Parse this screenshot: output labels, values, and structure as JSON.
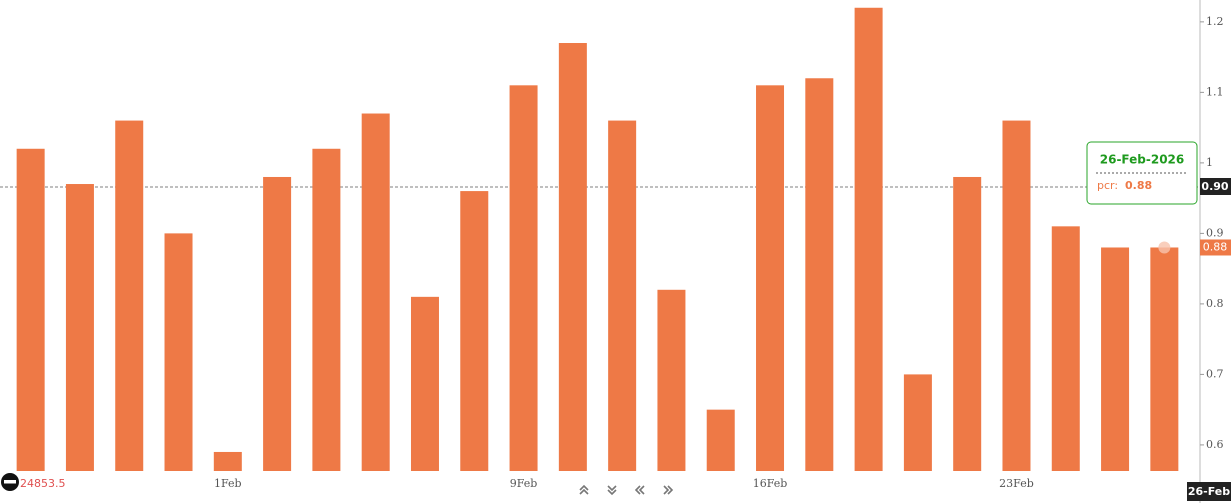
{
  "chart_data": {
    "type": "bar",
    "categories": [
      null,
      null,
      null,
      null,
      "1Feb",
      null,
      null,
      null,
      null,
      null,
      "9Feb",
      null,
      null,
      null,
      null,
      "16Feb",
      null,
      null,
      null,
      null,
      "23Feb",
      null,
      null,
      null
    ],
    "values": [
      1.02,
      0.97,
      1.06,
      0.9,
      0.59,
      0.98,
      1.02,
      1.07,
      0.81,
      0.96,
      1.11,
      1.17,
      1.06,
      0.82,
      0.65,
      1.11,
      1.12,
      1.22,
      0.7,
      0.98,
      1.06,
      0.91,
      0.88,
      0.88
    ],
    "color": "#ee7946",
    "ylim": [
      0.563,
      1.231
    ],
    "yticks": [
      0.6,
      0.7,
      0.8,
      0.9,
      1,
      1.1,
      1.2
    ],
    "crosshair_y_label": "0.90",
    "crosshair_x_label": "26-Feb",
    "tooltip": {
      "date": "26-Feb-2026",
      "label": "pcr:"
    },
    "footer_value": "24853.5"
  }
}
